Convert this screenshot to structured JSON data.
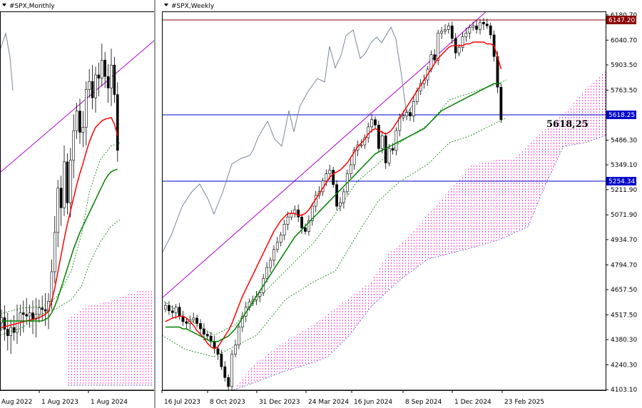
{
  "chart_data": [
    {
      "type": "candlestick",
      "title": "#SPX,Monthly",
      "x_ticks": [
        "Aug 2022",
        "1 Aug 2023",
        "1 Aug 2024"
      ],
      "close": [
        4580,
        4510,
        4470,
        4520,
        4490,
        4560,
        4610,
        4600,
        4590,
        4610,
        4570,
        4600,
        4640,
        4630,
        4620,
        4680,
        4860,
        5100,
        5370,
        5250,
        5530,
        5280,
        5540,
        5720,
        5840,
        5710,
        5740,
        5970,
        6020,
        5920,
        6060,
        6040,
        6150,
        6050,
        5980,
        6120,
        5940,
        5600
      ],
      "tenkan": [
        4520,
        4525,
        4530,
        4535,
        4540,
        4545,
        4550,
        4555,
        4560,
        4565,
        4570,
        4575,
        4580,
        4590,
        4600,
        4620,
        4680,
        4760,
        4860,
        4960,
        5060,
        5150,
        5230,
        5310,
        5390,
        5460,
        5520,
        5590,
        5650,
        5700,
        5740,
        5760,
        5780,
        5790,
        5795,
        5800,
        5760,
        5690
      ],
      "kijun": [
        4560,
        4560,
        4560,
        4560,
        4560,
        4560,
        4560,
        4560,
        4560,
        4560,
        4560,
        4560,
        4560,
        4560,
        4570,
        4580,
        4610,
        4650,
        4700,
        4760,
        4820,
        4880,
        4940,
        5000,
        5050,
        5100,
        5140,
        5180,
        5220,
        5260,
        5300,
        5340,
        5380,
        5420,
        5450,
        5470,
        5480,
        5485
      ]
    },
    {
      "type": "candlestick",
      "title": "#SPX,Weekly",
      "x_ticks": [
        "16 Jul 2023",
        "8 Oct 2023",
        "31 Dec 2023",
        "24 Mar 2024",
        "16 Jun 2024",
        "8 Sep 2024",
        "1 Dec 2024",
        "23 Feb 2025"
      ],
      "y_ticks": [
        "6180.70",
        "6040.70",
        "5903.50",
        "5763.50",
        "5486.30",
        "5349.10",
        "5211.90",
        "5071.90",
        "4934.70",
        "4794.70",
        "4657.50",
        "4517.50",
        "4380.30",
        "4240.30",
        "4103.10"
      ],
      "ylim": [
        4100,
        6200
      ],
      "price_tags": [
        "6147.20",
        "5618.25",
        "5254.34"
      ],
      "annotation": "5618,25",
      "close": [
        4570,
        4540,
        4530,
        4560,
        4510,
        4480,
        4470,
        4490,
        4500,
        4470,
        4440,
        4410,
        4400,
        4370,
        4330,
        4300,
        4230,
        4170,
        4120,
        4300,
        4350,
        4450,
        4510,
        4560,
        4590,
        4600,
        4620,
        4640,
        4720,
        4780,
        4820,
        4880,
        4920,
        4960,
        5020,
        5060,
        5080,
        5100,
        5060,
        5000,
        4980,
        5040,
        5120,
        5180,
        5200,
        5260,
        5300,
        5320,
        5240,
        5120,
        5140,
        5200,
        5300,
        5350,
        5430,
        5460,
        5460,
        5500,
        5560,
        5600,
        5570,
        5440,
        5510,
        5360,
        5440,
        5430,
        5540,
        5610,
        5620,
        5640,
        5620,
        5700,
        5760,
        5800,
        5820,
        5880,
        5960,
        5930,
        6080,
        6090,
        6100,
        6120,
        6050,
        5970,
        6000,
        6060,
        6080,
        6110,
        6120,
        6100,
        6140,
        6130,
        6120,
        6070,
        5950,
        5780,
        5600
      ],
      "tenkan": [
        4480,
        4490,
        4500,
        4505,
        4510,
        4510,
        4500,
        4480,
        4460,
        4430,
        4410,
        4390,
        4360,
        4340,
        4330,
        4340,
        4370,
        4400,
        4430,
        4470,
        4520,
        4570,
        4620,
        4660,
        4700,
        4740,
        4780,
        4820,
        4860,
        4900,
        4940,
        4980,
        5010,
        5040,
        5060,
        5080,
        5080,
        5080,
        5070,
        5070,
        5080,
        5100,
        5130,
        5160,
        5190,
        5220,
        5250,
        5280,
        5300,
        5310,
        5320,
        5340,
        5360,
        5390,
        5420,
        5450,
        5470,
        5490,
        5520,
        5540,
        5550,
        5540,
        5530,
        5520,
        5530,
        5550,
        5580,
        5610,
        5640,
        5670,
        5700,
        5730,
        5760,
        5790,
        5820,
        5850,
        5880,
        5910,
        5940,
        5960,
        5980,
        6000,
        6010,
        6010,
        6010,
        6010,
        6020,
        6020,
        6030,
        6030,
        6030,
        6030,
        6020,
        6020,
        6010,
        5950,
        5880
      ],
      "kijun": [
        4450,
        4450,
        4450,
        4450,
        4450,
        4440,
        4440,
        4430,
        4420,
        4410,
        4400,
        4390,
        4380,
        4370,
        4370,
        4370,
        4380,
        4390,
        4400,
        4420,
        4440,
        4470,
        4500,
        4530,
        4560,
        4590,
        4620,
        4650,
        4680,
        4710,
        4740,
        4770,
        4800,
        4830,
        4860,
        4890,
        4920,
        4950,
        4970,
        4990,
        5010,
        5030,
        5050,
        5070,
        5090,
        5110,
        5130,
        5150,
        5170,
        5190,
        5210,
        5230,
        5250,
        5270,
        5290,
        5310,
        5330,
        5350,
        5370,
        5390,
        5410,
        5420,
        5430,
        5440,
        5450,
        5460,
        5470,
        5480,
        5490,
        5500,
        5510,
        5520,
        5530,
        5540,
        5550,
        5570,
        5590,
        5610,
        5630,
        5650,
        5660,
        5670,
        5680,
        5690,
        5700,
        5710,
        5720,
        5730,
        5740,
        5750,
        5760,
        5770,
        5780,
        5790,
        5800,
        5800,
        5800
      ]
    }
  ],
  "colors": {
    "tenkan": "#ff0000",
    "kijun": "#008000",
    "cloud": "#ff00ff",
    "chikou": "#778899",
    "trendline": "#b000d0",
    "hline_resistance": "#8b0000",
    "hline_support": "#0000cd"
  }
}
